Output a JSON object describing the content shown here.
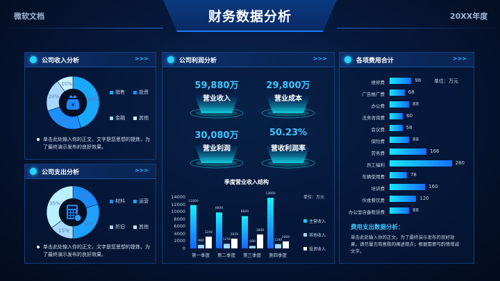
{
  "header": {
    "title": "财务数据分析",
    "left": "微软文档",
    "right": "20XX年度"
  },
  "income": {
    "title": "公司收入分析",
    "arrows": ">>>",
    "icon": "money-bag-icon",
    "slices": [
      {
        "label": "销售",
        "value": 45,
        "text": "45%",
        "color": "#1aa8ff"
      },
      {
        "label": "投资",
        "value": 25,
        "text": "25%",
        "color": "#1e90ff"
      },
      {
        "label": "金融",
        "value": 20,
        "text": "20%",
        "color": "#a8d8ff"
      },
      {
        "label": "其他",
        "value": 10,
        "text": "10%",
        "color": "#c9f3ff"
      }
    ],
    "note": "单击此处输入你的正文，文字是您思想的提炼，为了最终演示发布的良好效果。"
  },
  "expense": {
    "title": "公司支出分析",
    "arrows": ">>>",
    "icon": "calculator-icon",
    "slices": [
      {
        "label": "材料",
        "value": 20,
        "text": "20%",
        "color": "#1a8cff"
      },
      {
        "label": "运营",
        "value": 30,
        "text": "30%",
        "color": "#1ea0ff"
      },
      {
        "label": "折旧",
        "value": 15,
        "text": "15%",
        "color": "#a8d8ff"
      },
      {
        "label": "其他",
        "value": 35,
        "text": "35%",
        "color": "#b8f0ff"
      }
    ],
    "note": "单击此处输入你的正文，文字是您思想的提炼，为了最终演示发布的良好效果。"
  },
  "profit": {
    "title": "公司利润分析",
    "arrows": ">>>",
    "kpis": [
      {
        "value": "59,880万",
        "label": "营业收入"
      },
      {
        "value": "29,800万",
        "label": "营业成本"
      },
      {
        "value": "30,080万",
        "label": "营业利润"
      },
      {
        "value": "50.23%",
        "label": "营收利润率"
      }
    ]
  },
  "chart_data": {
    "type": "bar",
    "title": "季度营业收入结构",
    "unit": "单位：万元",
    "categories": [
      "第一季度",
      "第二季度",
      "第三季度",
      "第四季度"
    ],
    "yticks": [
      0,
      2000,
      4000,
      6000,
      8000,
      10000,
      12000,
      14000
    ],
    "ylim": [
      0,
      14000
    ],
    "series": [
      {
        "name": "主营收入",
        "values": [
          11800,
          9800,
          8800,
          13800
        ],
        "color": "#17e0ff"
      },
      {
        "name": "其他收入",
        "values": [
          980,
          1250,
          680,
          1190
        ],
        "color": "#9fd8ff"
      },
      {
        "name": "投资收入",
        "values": [
          3200,
          2650,
          3800,
          1900
        ],
        "color": "#ffffff"
      }
    ]
  },
  "costs": {
    "title": "各项费用合计",
    "arrows": ">>>",
    "unit": "单位：万元",
    "items": [
      {
        "label": "维修费",
        "value": 98
      },
      {
        "label": "广告推广费",
        "value": 68
      },
      {
        "label": "办公费",
        "value": 88
      },
      {
        "label": "法务咨询费",
        "value": 60
      },
      {
        "label": "会议费",
        "value": 58
      },
      {
        "label": "保险费",
        "value": 88
      },
      {
        "label": "劳务费",
        "value": 166
      },
      {
        "label": "员工福利",
        "value": 280
      },
      {
        "label": "车辆使用费",
        "value": 78
      },
      {
        "label": "培训费",
        "value": 160
      },
      {
        "label": "伙食餐饮费",
        "value": 120
      },
      {
        "label": "办公室自备租赁费",
        "value": 88
      }
    ],
    "analysis_title": "费用支出数据分析：",
    "analysis_text": "单击此处输入你的正文，为了最终演示发布的良好效果，请尽量言简意赅的阐述观点；根据需要可酌情增减文字。"
  }
}
